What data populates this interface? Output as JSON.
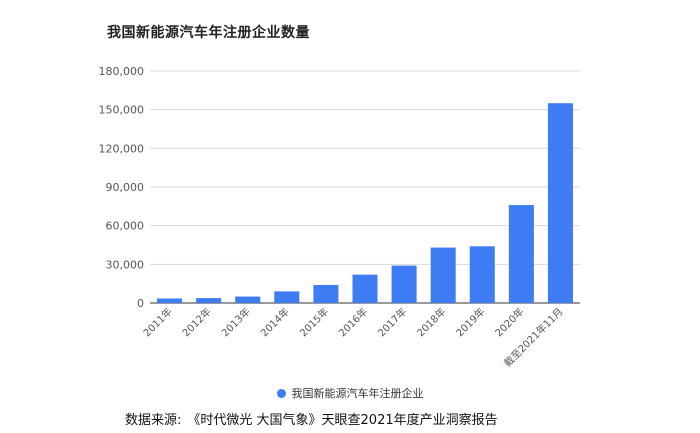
{
  "page": {
    "source_label": "数据来源:",
    "source_text": "《时代微光 大国气象》天眼查2021年度产业洞察报告"
  },
  "colors": {
    "bar": "#3d7cf2",
    "grid": "#d9d9d9",
    "axis": "#333333",
    "tick": "#555555"
  },
  "chart_data": {
    "type": "bar",
    "title": "我国新能源汽车年注册企业数量",
    "categories": [
      "2011年",
      "2012年",
      "2013年",
      "2014年",
      "2015年",
      "2016年",
      "2017年",
      "2018年",
      "2019年",
      "2020年",
      "截至2021年11月"
    ],
    "series": [
      {
        "name": "我国新能源汽车年注册企业",
        "values": [
          3500,
          3800,
          5000,
          9000,
          14000,
          22000,
          29000,
          43000,
          44000,
          76000,
          155000
        ]
      }
    ],
    "ylim": [
      0,
      180000
    ],
    "yticks": [
      0,
      30000,
      60000,
      90000,
      120000,
      150000,
      180000
    ],
    "ytick_labels": [
      "0",
      "30,000",
      "60,000",
      "90,000",
      "120,000",
      "150,000",
      "180,000"
    ],
    "xlabel": "",
    "ylabel": "",
    "grid": true,
    "legend_position": "bottom"
  }
}
